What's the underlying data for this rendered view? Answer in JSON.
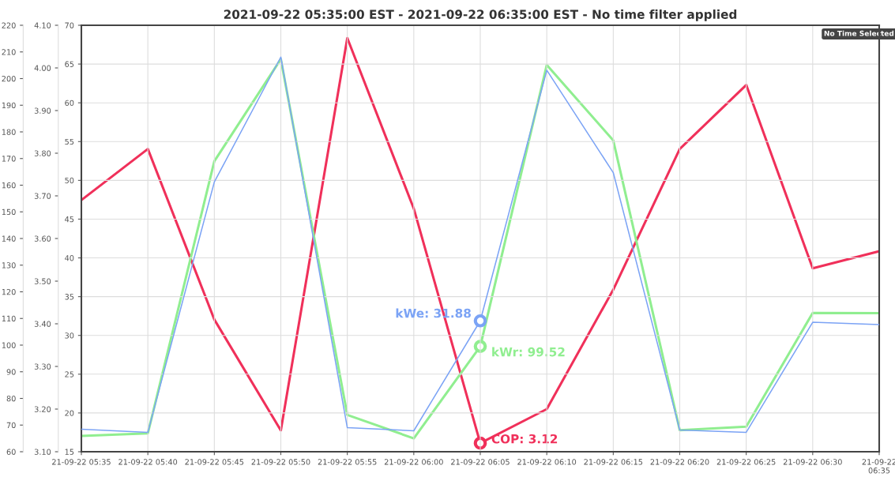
{
  "chart_data": {
    "type": "line",
    "title": "2021-09-22 05:35:00 EST - 2021-09-22 06:35:00 EST - No time filter applied",
    "x": [
      "2021-09-22T05:35",
      "2021-09-22T05:40",
      "2021-09-22T05:45",
      "2021-09-22T05:50",
      "2021-09-22T05:55",
      "2021-09-22T06:00",
      "2021-09-22T06:05",
      "2021-09-22T06:10",
      "2021-09-22T06:15",
      "2021-09-22T06:20",
      "2021-09-22T06:25",
      "2021-09-22T06:30",
      "2021-09-22T06:35"
    ],
    "series": [
      {
        "color": "#7ba3f5",
        "values": [
          17.9,
          17.5,
          49.8,
          65.9,
          18.1,
          17.7,
          31.88,
          64.2,
          51.0,
          17.8,
          17.5,
          31.7,
          31.4
        ]
      },
      {
        "color": "#90ee90",
        "axis": "y3",
        "values": [
          65.9,
          66.9,
          169.0,
          207.3,
          73.8,
          65.0,
          99.52,
          205.1,
          176.8,
          68.1,
          69.4,
          112.1,
          112.0
        ]
      },
      {
        "color": "#f0305a",
        "axis": "y2",
        "values": [
          3.69,
          3.81,
          3.41,
          3.15,
          4.07,
          3.67,
          3.12,
          3.2,
          3.48,
          3.81,
          3.96,
          3.53,
          3.57
        ]
      }
    ],
    "xlim": [
      "2021-09-22T05:35",
      "2021-09-22T06:35"
    ],
    "xticks": [
      {
        "value": "2021-09-22T05:35",
        "label": "21-09-22 05:35"
      },
      {
        "value": "2021-09-22T05:40",
        "label": "21-09-22 05:40"
      },
      {
        "value": "2021-09-22T05:45",
        "label": "21-09-22 05:45"
      },
      {
        "value": "2021-09-22T05:50",
        "label": "21-09-22 05:50"
      },
      {
        "value": "2021-09-22T05:55",
        "label": "21-09-22 05:55"
      },
      {
        "value": "2021-09-22T06:00",
        "label": "21-09-22 06:00"
      },
      {
        "value": "2021-09-22T06:05",
        "label": "21-09-22 06:05"
      },
      {
        "value": "2021-09-22T06:10",
        "label": "21-09-22 06:10"
      },
      {
        "value": "2021-09-22T06:15",
        "label": "21-09-22 06:15"
      },
      {
        "value": "2021-09-22T06:20",
        "label": "21-09-22 06:20"
      },
      {
        "value": "2021-09-22T06:25",
        "label": "21-09-22 06:25"
      },
      {
        "value": "2021-09-22T06:30",
        "label": "21-09-22 06:30"
      },
      {
        "value": "2021-09-22T06:35",
        "label": "21-09-22\n06:35"
      }
    ],
    "ylim": [
      15,
      70
    ],
    "yticks": [
      15,
      20,
      25,
      30,
      35,
      40,
      45,
      50,
      55,
      60,
      65,
      70
    ],
    "y2lim": [
      3.1,
      4.1
    ],
    "y2ticks": [
      {
        "value": 3.1,
        "label": "3.10"
      },
      {
        "value": 3.2,
        "label": "3.20"
      },
      {
        "value": 3.3,
        "label": "3.30"
      },
      {
        "value": 3.4,
        "label": "3.40"
      },
      {
        "value": 3.5,
        "label": "3.50"
      },
      {
        "value": 3.6,
        "label": "3.60"
      },
      {
        "value": 3.7,
        "label": "3.70"
      },
      {
        "value": 3.8,
        "label": "3.80"
      },
      {
        "value": 3.9,
        "label": "3.90"
      },
      {
        "value": 4.0,
        "label": "4.00"
      },
      {
        "value": 4.1,
        "label": "4.10"
      }
    ],
    "y3lim": [
      60,
      220
    ],
    "y3ticks": [
      60,
      70,
      80,
      90,
      100,
      110,
      120,
      130,
      140,
      150,
      160,
      170,
      180,
      190,
      200,
      210,
      220
    ],
    "grid": true,
    "marker": "none",
    "line_style": "solid",
    "annotations": [
      {
        "text": "kWe: 31.88",
        "x": "2021-09-22T06:05",
        "y": 31.88
      },
      "kWr: 99.52",
      "COP: 3.12",
      "No Time Selected"
    ]
  }
}
